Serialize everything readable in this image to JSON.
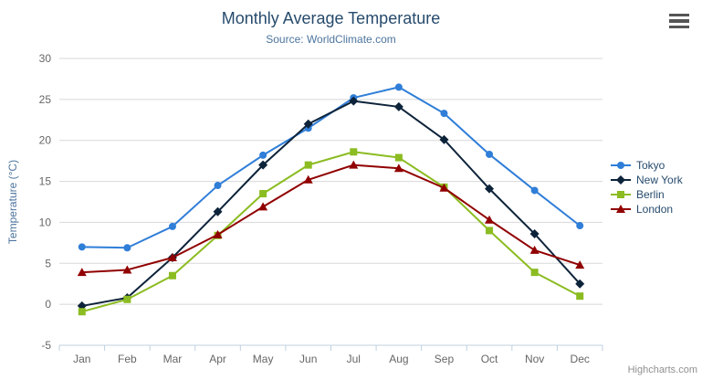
{
  "header": {
    "title": "Monthly Average Temperature",
    "subtitle": "Source: WorldClimate.com"
  },
  "credits": {
    "label": "Highcharts.com"
  },
  "icons": {
    "context_menu": "hamburger-menu-icon"
  },
  "colors": {
    "title": "#274b6d",
    "subtitle": "#4d759e",
    "axis_title": "#4d759e",
    "axis_label": "#666666",
    "grid": "#d8d8d8",
    "axis_line": "#c0d0e0",
    "legend_text": "#274b6d",
    "credits": "#909090",
    "menu_icon": "#555555"
  },
  "chart_data": {
    "type": "line",
    "title": "Monthly Average Temperature",
    "subtitle": "Source: WorldClimate.com",
    "xlabel": "",
    "ylabel": "Temperature (°C)",
    "ylim": [
      -5,
      30
    ],
    "ytick_interval": 5,
    "grid": true,
    "legend_position": "right",
    "categories": [
      "Jan",
      "Feb",
      "Mar",
      "Apr",
      "May",
      "Jun",
      "Jul",
      "Aug",
      "Sep",
      "Oct",
      "Nov",
      "Dec"
    ],
    "series": [
      {
        "name": "Tokyo",
        "color": "#2f7ed8",
        "marker": "circle",
        "values": [
          7.0,
          6.9,
          9.5,
          14.5,
          18.2,
          21.5,
          25.2,
          26.5,
          23.3,
          18.3,
          13.9,
          9.6
        ]
      },
      {
        "name": "New York",
        "color": "#0d233a",
        "marker": "diamond",
        "values": [
          -0.2,
          0.8,
          5.7,
          11.3,
          17.0,
          22.0,
          24.8,
          24.1,
          20.1,
          14.1,
          8.6,
          2.5
        ]
      },
      {
        "name": "Berlin",
        "color": "#8bbc21",
        "marker": "square",
        "values": [
          -0.9,
          0.6,
          3.5,
          8.4,
          13.5,
          17.0,
          18.6,
          17.9,
          14.3,
          9.0,
          3.9,
          1.0
        ]
      },
      {
        "name": "London",
        "color": "#910000",
        "marker": "triangle",
        "values": [
          3.9,
          4.2,
          5.7,
          8.5,
          11.9,
          15.2,
          17.0,
          16.6,
          14.2,
          10.3,
          6.6,
          4.8
        ]
      }
    ]
  }
}
